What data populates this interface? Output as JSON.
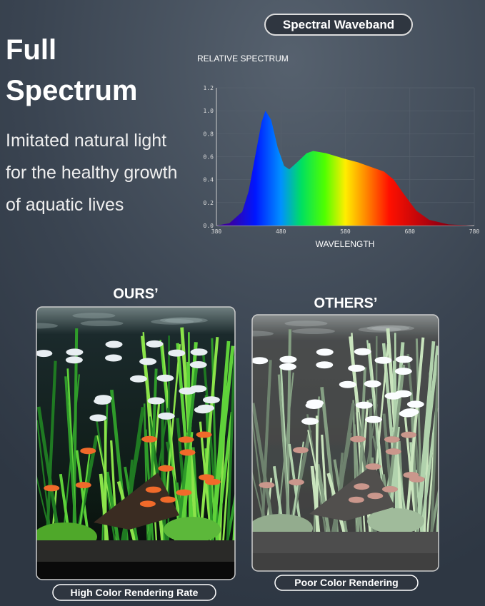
{
  "heading": {
    "title_lines": [
      "Full",
      "Spectrum"
    ],
    "subtitle_lines": [
      "Imitated natural light",
      "for the healthy growth",
      "of aquatic lives"
    ]
  },
  "badge": "Spectral Waveband",
  "chart_data": {
    "type": "area",
    "ylabel": "RELATIVE SPECTRUM",
    "xlabel": "WAVELENGTH",
    "x": [
      380,
      400,
      420,
      430,
      440,
      450,
      456,
      465,
      475,
      485,
      493,
      505,
      520,
      530,
      550,
      580,
      600,
      620,
      640,
      655,
      670,
      690,
      710,
      740,
      780
    ],
    "values": [
      0,
      0.02,
      0.12,
      0.3,
      0.6,
      0.9,
      1.0,
      0.92,
      0.68,
      0.52,
      0.49,
      0.55,
      0.63,
      0.65,
      0.63,
      0.58,
      0.55,
      0.51,
      0.47,
      0.4,
      0.28,
      0.13,
      0.05,
      0.01,
      0
    ],
    "xlim": [
      380,
      780
    ],
    "xticks": [
      380,
      480,
      580,
      680,
      780
    ],
    "ylim": [
      0,
      1.2
    ],
    "yticks": [
      {
        "value": 0,
        "label": "0.0"
      },
      0.2,
      0.4,
      0.6,
      0.8,
      {
        "value": 1,
        "label": "1.0"
      },
      1.2
    ],
    "grid": true
  },
  "comparison": [
    {
      "label": "OURS’",
      "caption": "High Color Rendering Rate"
    },
    {
      "label": "OTHERS’",
      "caption": "Poor Color Rendering"
    }
  ]
}
